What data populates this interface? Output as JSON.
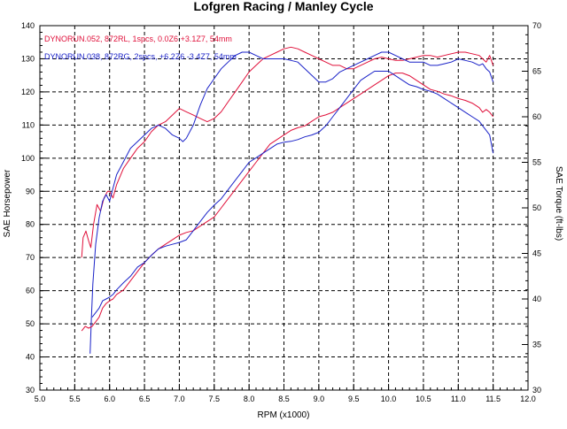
{
  "chart_data": {
    "type": "line",
    "title": "Lofgren Racing / Manley Cycle",
    "xlabel": "RPM (x1000)",
    "ylabel_left": "SAE Horsepower",
    "ylabel_right": "SAE Torque (ft-lbs)",
    "xlim": [
      5.0,
      12.0
    ],
    "ylim_left": [
      30,
      140
    ],
    "ylim_right": [
      30,
      70
    ],
    "grid": true,
    "x_ticks": [
      "5.0",
      "5.5",
      "6.0",
      "6.5",
      "7.0",
      "7.5",
      "8.0",
      "8.5",
      "9.0",
      "9.5",
      "10.0",
      "10.5",
      "11.0",
      "11.5",
      "12.0"
    ],
    "y_ticks_left": [
      "30",
      "40",
      "50",
      "60",
      "70",
      "80",
      "90",
      "100",
      "110",
      "120",
      "130",
      "140"
    ],
    "y_ticks_right": [
      "30",
      "35",
      "40",
      "45",
      "50",
      "55",
      "60",
      "65",
      "70"
    ],
    "legend": [
      {
        "label": "DYNORUN.052,  872RL, 1spcs, 0.0Z6 +3.1Z7, 54mm",
        "color": "#e0103a"
      },
      {
        "label": "DYNORUN.038,  872RG, 2spcs, +6.2Z6 -3.4Z7, 54mm",
        "color": "#1a22c8"
      }
    ],
    "series": [
      {
        "color": "#e0103a",
        "axis": "left",
        "x": [
          5.6,
          5.62,
          5.66,
          5.7,
          5.73,
          5.77,
          5.82,
          5.87,
          5.92,
          5.97,
          6.0,
          6.05,
          6.1,
          6.2,
          6.3,
          6.4,
          6.5,
          6.6,
          6.7,
          6.8,
          6.9,
          7.0,
          7.1,
          7.2,
          7.3,
          7.4,
          7.5,
          7.6,
          7.7,
          7.8,
          7.9,
          8.0,
          8.1,
          8.2,
          8.3,
          8.4,
          8.5,
          8.6,
          8.7,
          8.8,
          8.9,
          9.0,
          9.1,
          9.2,
          9.3,
          9.4,
          9.5,
          9.6,
          9.7,
          9.8,
          9.9,
          10.0,
          10.1,
          10.2,
          10.3,
          10.4,
          10.5,
          10.6,
          10.7,
          10.8,
          10.9,
          11.0,
          11.1,
          11.2,
          11.3,
          11.35,
          11.4,
          11.45,
          11.5
        ],
        "y": [
          70,
          76,
          78,
          75,
          73,
          80,
          86,
          84,
          88,
          90,
          90,
          88,
          92,
          97,
          100,
          103,
          105,
          108,
          110,
          111,
          113,
          115,
          114,
          113,
          112,
          111,
          112,
          114,
          117,
          120,
          123,
          126,
          128,
          130,
          131,
          132,
          133,
          133.5,
          133,
          132,
          131,
          130,
          129,
          128,
          128,
          127,
          127,
          128,
          129,
          130,
          130.5,
          130,
          129.5,
          129.5,
          130,
          130.5,
          131,
          131,
          130.5,
          131,
          131.5,
          132,
          132,
          131.5,
          131,
          130,
          129,
          131,
          128
        ]
      },
      {
        "color": "#1a22c8",
        "axis": "left",
        "x": [
          5.72,
          5.74,
          5.76,
          5.8,
          5.85,
          5.9,
          5.95,
          6.0,
          6.05,
          6.1,
          6.2,
          6.3,
          6.4,
          6.5,
          6.6,
          6.7,
          6.8,
          6.9,
          7.0,
          7.05,
          7.1,
          7.2,
          7.3,
          7.4,
          7.5,
          7.6,
          7.7,
          7.8,
          7.9,
          8.0,
          8.1,
          8.2,
          8.3,
          8.4,
          8.5,
          8.6,
          8.7,
          8.8,
          8.9,
          9.0,
          9.1,
          9.2,
          9.3,
          9.4,
          9.5,
          9.6,
          9.7,
          9.8,
          9.9,
          10.0,
          10.1,
          10.2,
          10.3,
          10.4,
          10.5,
          10.6,
          10.7,
          10.8,
          10.9,
          11.0,
          11.1,
          11.2,
          11.3,
          11.35,
          11.4,
          11.45,
          11.5
        ],
        "y": [
          41,
          52,
          62,
          74,
          82,
          87,
          89,
          87,
          91,
          95,
          99,
          103,
          105,
          107,
          109,
          110,
          109,
          107,
          106,
          105,
          106,
          110,
          116,
          121,
          124,
          127,
          129,
          131,
          132,
          132,
          131,
          130,
          130,
          130,
          130,
          129.5,
          129,
          127,
          125,
          123,
          123,
          124,
          126,
          127,
          128,
          129,
          130,
          131,
          132,
          132,
          131,
          130,
          129,
          129,
          129,
          128,
          128,
          128.5,
          129,
          130,
          129.5,
          129,
          128,
          128.5,
          127,
          126,
          123
        ]
      },
      {
        "color": "#e0103a",
        "axis": "right",
        "x": [
          5.6,
          5.65,
          5.7,
          5.75,
          5.8,
          5.85,
          5.9,
          5.95,
          6.0,
          6.05,
          6.1,
          6.2,
          6.3,
          6.4,
          6.5,
          6.6,
          6.7,
          6.8,
          6.9,
          7.0,
          7.1,
          7.2,
          7.3,
          7.4,
          7.5,
          7.6,
          7.7,
          7.8,
          7.9,
          8.0,
          8.1,
          8.2,
          8.3,
          8.4,
          8.5,
          8.6,
          8.7,
          8.8,
          8.9,
          9.0,
          9.1,
          9.2,
          9.3,
          9.4,
          9.5,
          9.6,
          9.7,
          9.8,
          9.9,
          10.0,
          10.1,
          10.2,
          10.3,
          10.4,
          10.5,
          10.6,
          10.7,
          10.8,
          10.9,
          11.0,
          11.1,
          11.2,
          11.3,
          11.35,
          11.4,
          11.45,
          11.5
        ],
        "y": [
          36.5,
          37,
          36.8,
          37,
          37.5,
          38,
          39,
          39.5,
          39.8,
          40,
          40.5,
          41,
          42,
          43,
          44,
          44.8,
          45.5,
          46,
          46.5,
          47,
          47.3,
          47.5,
          48,
          48.5,
          49,
          50,
          51,
          52,
          53,
          54,
          55,
          56,
          57,
          57.5,
          58,
          58.5,
          58.8,
          59,
          59.5,
          60,
          60.2,
          60.5,
          61,
          61.5,
          62,
          62.5,
          63,
          63.5,
          64,
          64.5,
          64.8,
          64.8,
          64.5,
          64,
          63.5,
          63,
          62.8,
          62.5,
          62.3,
          62,
          61.8,
          61.5,
          61,
          60.5,
          60.8,
          60.5,
          60
        ]
      },
      {
        "color": "#1a22c8",
        "axis": "right",
        "x": [
          5.75,
          5.8,
          5.85,
          5.9,
          5.95,
          6.0,
          6.05,
          6.1,
          6.2,
          6.3,
          6.4,
          6.5,
          6.6,
          6.7,
          6.8,
          6.9,
          7.0,
          7.1,
          7.2,
          7.3,
          7.4,
          7.5,
          7.6,
          7.7,
          7.8,
          7.9,
          8.0,
          8.1,
          8.2,
          8.3,
          8.4,
          8.5,
          8.6,
          8.7,
          8.8,
          8.9,
          9.0,
          9.1,
          9.2,
          9.3,
          9.4,
          9.5,
          9.6,
          9.7,
          9.8,
          9.9,
          10.0,
          10.1,
          10.2,
          10.3,
          10.4,
          10.5,
          10.6,
          10.7,
          10.8,
          10.9,
          11.0,
          11.1,
          11.2,
          11.3,
          11.35,
          11.4,
          11.45,
          11.5
        ],
        "y": [
          38,
          38.5,
          39,
          39.8,
          40,
          40.2,
          40.5,
          41,
          41.8,
          42.5,
          43.5,
          44,
          44.8,
          45.5,
          45.8,
          46,
          46.2,
          46.5,
          47.5,
          48.5,
          49.5,
          50.3,
          51,
          52,
          53,
          54,
          55,
          55.5,
          56,
          56.5,
          57,
          57.2,
          57.3,
          57.5,
          57.8,
          58,
          58.3,
          59,
          60,
          61,
          62,
          63,
          64,
          64.5,
          65,
          65,
          65,
          64.5,
          64,
          63.5,
          63.3,
          63,
          62.8,
          62.5,
          62,
          61.5,
          61,
          60.5,
          60,
          59.5,
          59,
          58.5,
          58,
          56
        ]
      }
    ]
  }
}
